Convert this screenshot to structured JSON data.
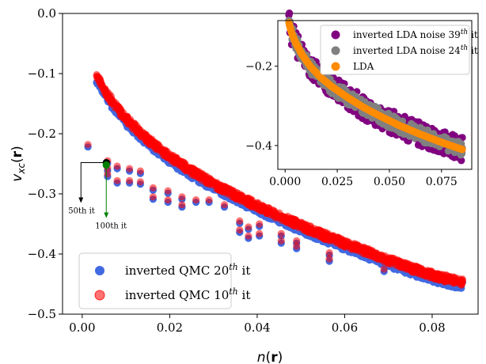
{
  "chart_data": [
    {
      "type": "scatter",
      "xlabel": "n(r)",
      "ylabel": "v_xc(r)",
      "xlim": [
        -0.0045,
        0.0905
      ],
      "ylim": [
        -0.5,
        0.0
      ],
      "xticks": [
        "0.00",
        "0.02",
        "0.04",
        "0.06",
        "0.08"
      ],
      "xtick_values": [
        0.0,
        0.02,
        0.04,
        0.06,
        0.08
      ],
      "yticks": [
        "0.0",
        "−0.1",
        "−0.2",
        "−0.3",
        "−0.4",
        "−0.5"
      ],
      "ytick_values": [
        0.0,
        -0.1,
        -0.2,
        -0.3,
        -0.4,
        -0.5
      ],
      "grid": false,
      "legend_position": "lower-left",
      "series": [
        {
          "name": "inverted QMC 20th it",
          "color": "#4169e1",
          "opacity": 1.0,
          "curve_offset": -0.006,
          "scatter": 0.006
        },
        {
          "name": "inverted QMC 10th it",
          "color": "#ff0000",
          "opacity": 0.55,
          "curve_offset": 0.0,
          "scatter": 0.006
        }
      ],
      "curve_points": [
        [
          0.0032,
          -0.103
        ],
        [
          0.005,
          -0.125
        ],
        [
          0.007,
          -0.148
        ],
        [
          0.01,
          -0.175
        ],
        [
          0.015,
          -0.21
        ],
        [
          0.02,
          -0.238
        ],
        [
          0.025,
          -0.262
        ],
        [
          0.03,
          -0.283
        ],
        [
          0.035,
          -0.302
        ],
        [
          0.04,
          -0.32
        ],
        [
          0.045,
          -0.337
        ],
        [
          0.05,
          -0.353
        ],
        [
          0.055,
          -0.368
        ],
        [
          0.06,
          -0.382
        ],
        [
          0.065,
          -0.396
        ],
        [
          0.07,
          -0.41
        ],
        [
          0.075,
          -0.423
        ],
        [
          0.08,
          -0.435
        ],
        [
          0.085,
          -0.444
        ],
        [
          0.087,
          -0.447
        ]
      ],
      "outlier_points": [
        [
          0.0013,
          -0.218
        ],
        [
          0.0058,
          -0.245
        ],
        [
          0.0058,
          -0.257
        ],
        [
          0.0058,
          -0.267
        ],
        [
          0.008,
          -0.254
        ],
        [
          0.008,
          -0.278
        ],
        [
          0.0108,
          -0.258
        ],
        [
          0.0108,
          -0.278
        ],
        [
          0.0133,
          -0.262
        ],
        [
          0.0133,
          -0.28
        ],
        [
          0.0162,
          -0.29
        ],
        [
          0.0162,
          -0.305
        ],
        [
          0.0196,
          -0.295
        ],
        [
          0.0196,
          -0.31
        ],
        [
          0.0228,
          -0.305
        ],
        [
          0.0228,
          -0.318
        ],
        [
          0.026,
          -0.31
        ],
        [
          0.029,
          -0.31
        ],
        [
          0.0325,
          -0.318
        ],
        [
          0.036,
          -0.345
        ],
        [
          0.036,
          -0.36
        ],
        [
          0.038,
          -0.355
        ],
        [
          0.038,
          -0.37
        ],
        [
          0.0405,
          -0.35
        ],
        [
          0.0405,
          -0.366
        ],
        [
          0.0455,
          -0.366
        ],
        [
          0.0455,
          -0.378
        ],
        [
          0.049,
          -0.378
        ],
        [
          0.049,
          -0.387
        ],
        [
          0.0565,
          -0.408
        ],
        [
          0.0565,
          -0.398
        ],
        [
          0.069,
          -0.425
        ]
      ],
      "annotations": [
        {
          "text": "50th it",
          "x": 0.0055,
          "y": -0.248,
          "color": "#000000"
        },
        {
          "text": "100th it",
          "x": 0.0055,
          "y": -0.25,
          "color": "#008000"
        }
      ]
    },
    {
      "type": "scatter",
      "inset": true,
      "xlim": [
        -0.0035,
        0.0895
      ],
      "ylim": [
        -0.46,
        -0.085
      ],
      "xticks": [
        "0.000",
        "0.025",
        "0.050",
        "0.075"
      ],
      "xtick_values": [
        0.0,
        0.025,
        0.05,
        0.075
      ],
      "yticks": [
        "−0.2",
        "−0.4"
      ],
      "ytick_values": [
        -0.2,
        -0.4
      ],
      "grid": false,
      "legend_position": "top-right",
      "series": [
        {
          "name": "inverted LDA noise 39th it",
          "color": "#800080",
          "scatter": 0.03
        },
        {
          "name": "inverted LDA noise 24th it",
          "color": "#808080",
          "scatter": 0.018
        },
        {
          "name": "LDA",
          "color": "#ff8c00",
          "scatter": 0.0
        }
      ],
      "curve_points": [
        [
          0.0018,
          -0.09
        ],
        [
          0.003,
          -0.115
        ],
        [
          0.005,
          -0.14
        ],
        [
          0.008,
          -0.17
        ],
        [
          0.012,
          -0.2
        ],
        [
          0.017,
          -0.228
        ],
        [
          0.022,
          -0.25
        ],
        [
          0.03,
          -0.279
        ],
        [
          0.038,
          -0.305
        ],
        [
          0.046,
          -0.327
        ],
        [
          0.055,
          -0.35
        ],
        [
          0.065,
          -0.372
        ],
        [
          0.075,
          -0.392
        ],
        [
          0.085,
          -0.41
        ]
      ]
    }
  ]
}
